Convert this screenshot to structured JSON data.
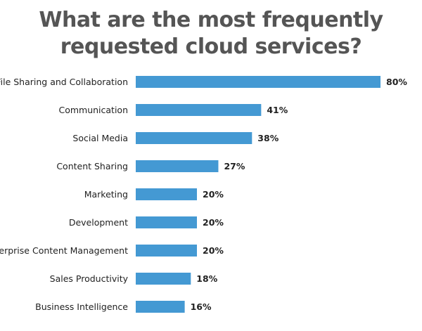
{
  "chart_data": {
    "type": "bar",
    "orientation": "horizontal",
    "title_lines": [
      "What are the most frequently",
      "requested cloud services?"
    ],
    "categories": [
      "File Sharing and Collaboration",
      "Communication",
      "Social Media",
      "Content Sharing",
      "Marketing",
      "Development",
      "Enterprise Content Management",
      "Sales Productivity",
      "Business Intelligence"
    ],
    "values": [
      80,
      41,
      38,
      27,
      20,
      20,
      20,
      18,
      16
    ],
    "value_labels": [
      "80%",
      "41%",
      "38%",
      "27%",
      "20%",
      "20%",
      "20%",
      "18%",
      "16%"
    ],
    "xlim": [
      0,
      80
    ],
    "grid": false,
    "legend": "none",
    "bar_color": "#4499d3",
    "text_color": "#222222",
    "title_color": "#555555"
  }
}
